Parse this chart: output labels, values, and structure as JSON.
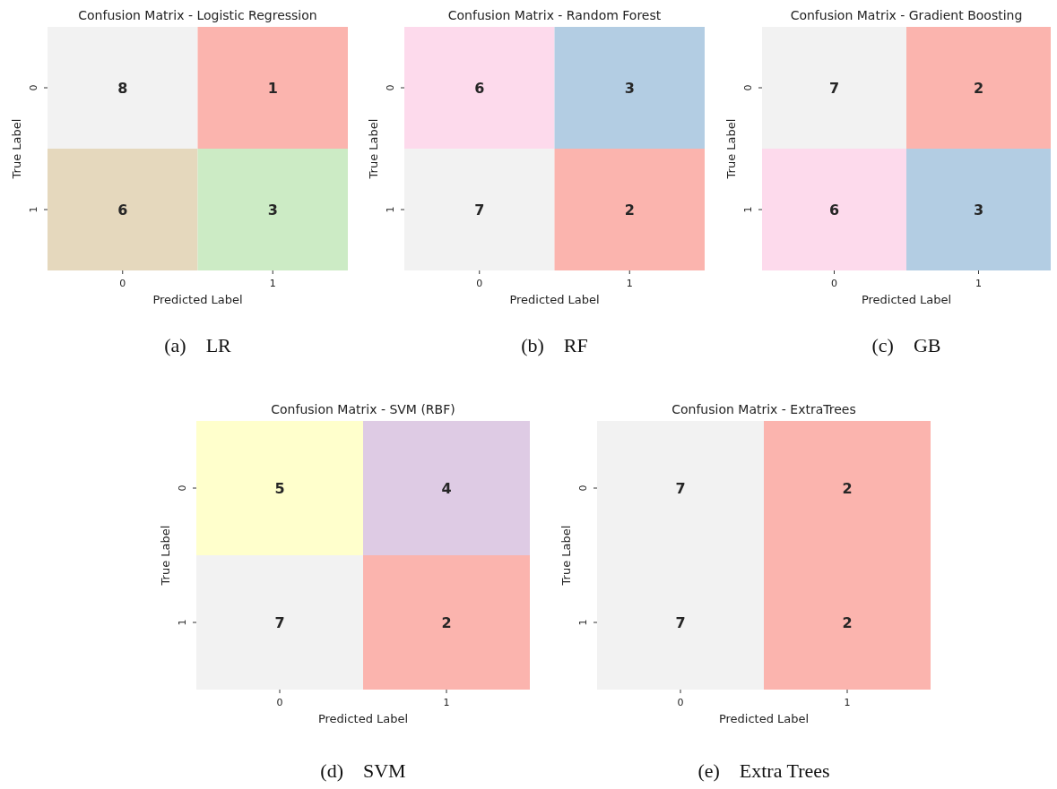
{
  "chart_data": [
    {
      "type": "heatmap",
      "title": "Confusion Matrix - Logistic Regression",
      "xlabel": "Predicted Label",
      "ylabel": "True Label",
      "categories": [
        "0",
        "1"
      ],
      "y_categories": [
        "0",
        "1"
      ],
      "cells": [
        [
          8,
          1
        ],
        [
          6,
          3
        ]
      ],
      "colors": [
        [
          "#f2f2f2",
          "#fbb4ae"
        ],
        [
          "#e5d8bd",
          "#ccebc5"
        ]
      ],
      "data_labels": true,
      "annotations": [
        "(a)    LR"
      ]
    },
    {
      "type": "heatmap",
      "title": "Confusion Matrix - Random Forest",
      "xlabel": "Predicted Label",
      "ylabel": "True Label",
      "categories": [
        "0",
        "1"
      ],
      "y_categories": [
        "0",
        "1"
      ],
      "cells": [
        [
          6,
          3
        ],
        [
          7,
          2
        ]
      ],
      "colors": [
        [
          "#fddaec",
          "#b3cde3"
        ],
        [
          "#f2f2f2",
          "#fbb4ae"
        ]
      ],
      "data_labels": true,
      "annotations": [
        "(b)    RF"
      ]
    },
    {
      "type": "heatmap",
      "title": "Confusion Matrix - Gradient Boosting",
      "xlabel": "Predicted Label",
      "ylabel": "True Label",
      "categories": [
        "0",
        "1"
      ],
      "y_categories": [
        "0",
        "1"
      ],
      "cells": [
        [
          7,
          2
        ],
        [
          6,
          3
        ]
      ],
      "colors": [
        [
          "#f2f2f2",
          "#fbb4ae"
        ],
        [
          "#fddaec",
          "#b3cde3"
        ]
      ],
      "data_labels": true,
      "annotations": [
        "(c)    GB"
      ]
    },
    {
      "type": "heatmap",
      "title": "Confusion Matrix - SVM (RBF)",
      "xlabel": "Predicted Label",
      "ylabel": "True Label",
      "categories": [
        "0",
        "1"
      ],
      "y_categories": [
        "0",
        "1"
      ],
      "cells": [
        [
          5,
          4
        ],
        [
          7,
          2
        ]
      ],
      "colors": [
        [
          "#ffffcc",
          "#decbe4"
        ],
        [
          "#f2f2f2",
          "#fbb4ae"
        ]
      ],
      "data_labels": true,
      "annotations": [
        "(d)    SVM"
      ]
    },
    {
      "type": "heatmap",
      "title": "Confusion Matrix - ExtraTrees",
      "xlabel": "Predicted Label",
      "ylabel": "True Label",
      "categories": [
        "0",
        "1"
      ],
      "y_categories": [
        "0",
        "1"
      ],
      "cells": [
        [
          7,
          2
        ],
        [
          7,
          2
        ]
      ],
      "colors": [
        [
          "#f2f2f2",
          "#fbb4ae"
        ],
        [
          "#f2f2f2",
          "#fbb4ae"
        ]
      ],
      "data_labels": true,
      "annotations": [
        "(e)    Extra Trees"
      ]
    }
  ]
}
